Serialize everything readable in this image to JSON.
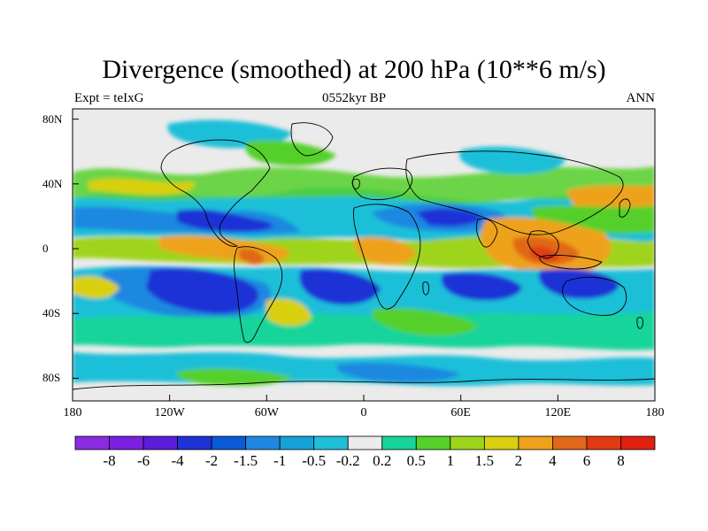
{
  "header": {
    "title": "Divergence (smoothed) at 200 hPa (10**6 m/s)",
    "left": "Expt = teIxG",
    "center": "0552kyr BP",
    "right": "ANN"
  },
  "map": {
    "projection": "cylindrical-equidistant",
    "lat_ticks": [
      "80N",
      "40N",
      "0",
      "40S",
      "80S"
    ],
    "lat_values": [
      80,
      40,
      0,
      -40,
      -80
    ],
    "lon_ticks": [
      "180",
      "120W",
      "60W",
      "0",
      "60E",
      "120E",
      "180"
    ],
    "lon_values": [
      -180,
      -120,
      -60,
      0,
      60,
      120,
      180
    ],
    "land_outline_color": "#000000"
  },
  "colorbar": {
    "levels": [
      "-8",
      "-6",
      "-4",
      "-2",
      "-1.5",
      "-1",
      "-0.5",
      "-0.2",
      "0.2",
      "0.5",
      "1",
      "1.5",
      "2",
      "4",
      "6",
      "8"
    ],
    "colors": [
      "#8a2be2",
      "#7b1fe0",
      "#5a1dd8",
      "#1f32d6",
      "#0a5ad8",
      "#1e88e0",
      "#15a2d8",
      "#1fbfd8",
      "#ebebeb",
      "#18d49a",
      "#55d02a",
      "#9fd41d",
      "#d8d010",
      "#eea21c",
      "#e06818",
      "#e23a12",
      "#e02010"
    ]
  }
}
